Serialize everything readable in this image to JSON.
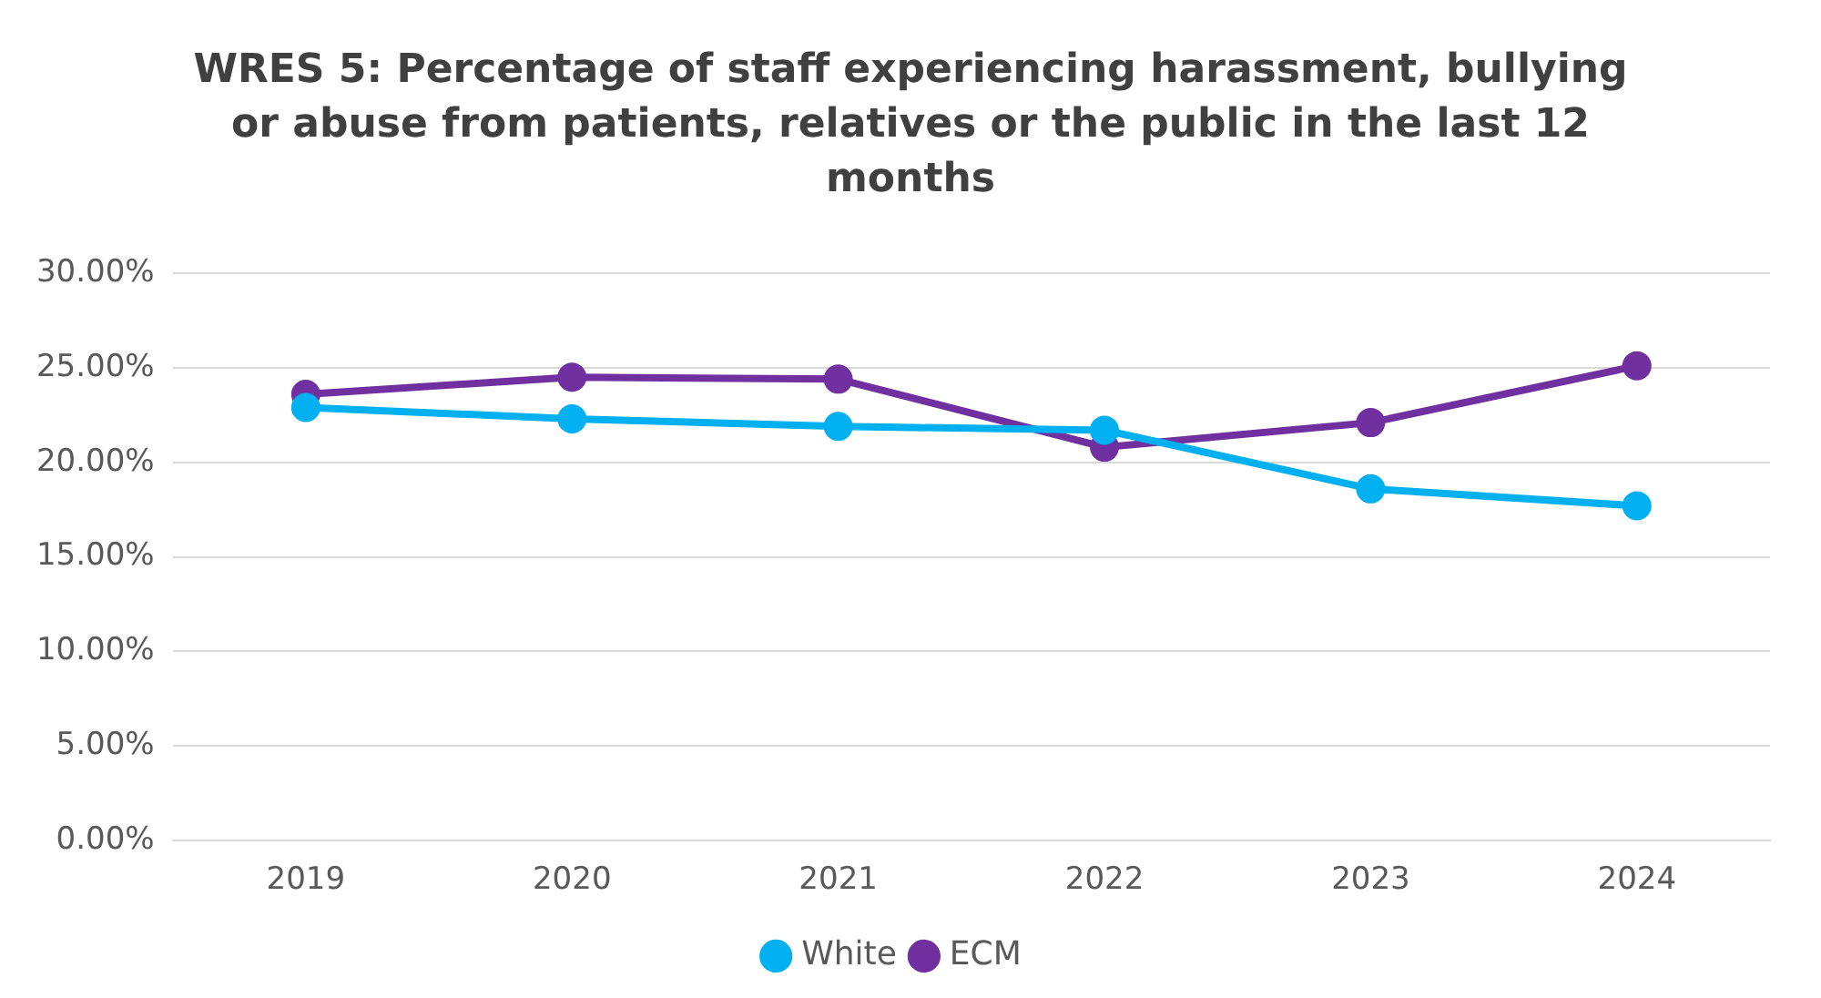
{
  "chart_data": {
    "type": "line",
    "title": "WRES 5: Percentage of staff experiencing harassment, bullying or abuse from patients, relatives or the public in the last 12 months",
    "categories": [
      "2019",
      "2020",
      "2021",
      "2022",
      "2023",
      "2024"
    ],
    "series": [
      {
        "name": "White",
        "color": "#00b0f0",
        "values": [
          22.9,
          22.3,
          21.9,
          21.7,
          18.6,
          17.7
        ]
      },
      {
        "name": "ECM",
        "color": "#7030a0",
        "values": [
          23.6,
          24.5,
          24.4,
          20.8,
          22.1,
          25.1
        ]
      }
    ],
    "ylim": [
      0,
      30
    ],
    "yticks": [
      {
        "value": 0,
        "label": "0.00%"
      },
      {
        "value": 5,
        "label": "5.00%"
      },
      {
        "value": 10,
        "label": "10.00%"
      },
      {
        "value": 15,
        "label": "15.00%"
      },
      {
        "value": 20,
        "label": "20.00%"
      },
      {
        "value": 25,
        "label": "25.00%"
      },
      {
        "value": 30,
        "label": "30.00%"
      }
    ],
    "grid": "y",
    "legend": "bottom",
    "marker": "circle",
    "line_style": "solid"
  }
}
